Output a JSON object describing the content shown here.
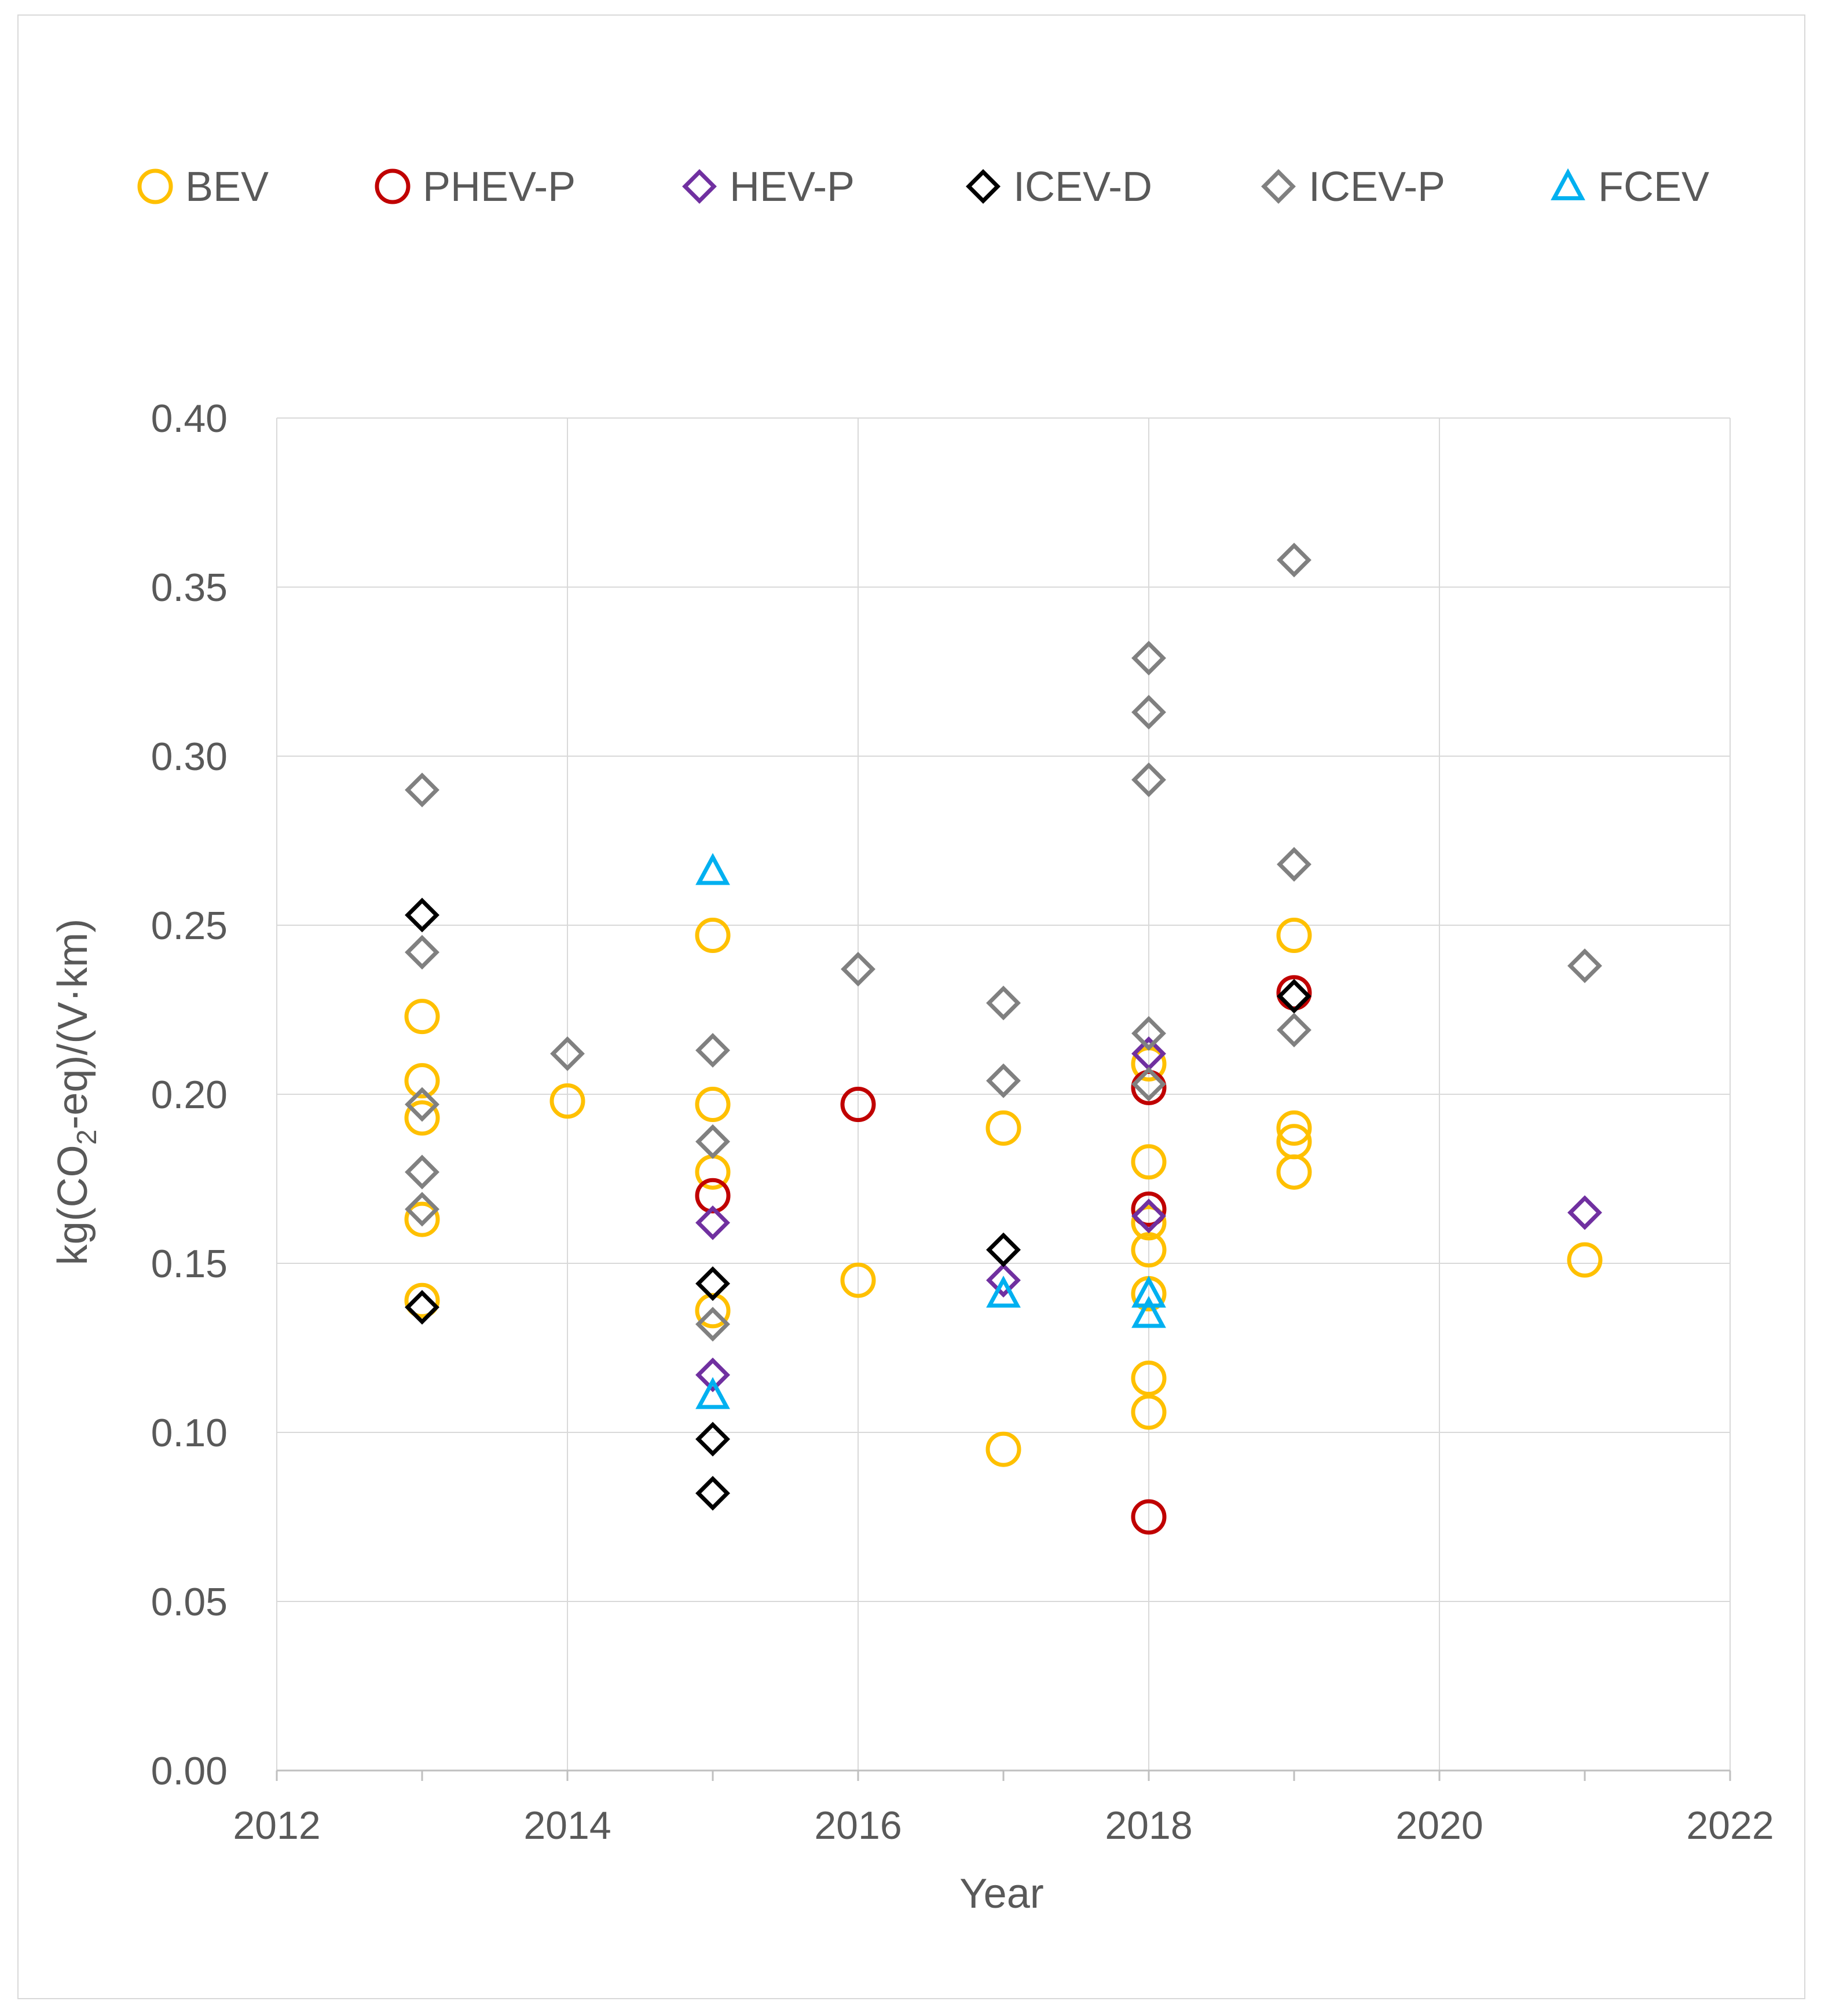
{
  "chart_data": {
    "type": "scatter",
    "title": "",
    "xlabel": "Year",
    "ylabel": "kg(CO2-eq)/(V·km)",
    "ylabel_parts": {
      "pre": "kg(CO",
      "sub": "2",
      "post": "-eq)/(V·km)"
    },
    "xlim": [
      2012,
      2022
    ],
    "ylim": [
      0,
      0.4
    ],
    "x_ticks": [
      2012,
      2014,
      2016,
      2018,
      2020,
      2022
    ],
    "y_ticks": [
      0.0,
      0.05,
      0.1,
      0.15,
      0.2,
      0.25,
      0.3,
      0.35,
      0.4
    ],
    "y_tick_labels": [
      "0.00",
      "0.05",
      "0.10",
      "0.15",
      "0.20",
      "0.25",
      "0.30",
      "0.35",
      "0.40"
    ],
    "grid": true,
    "legend_position": "top",
    "series": [
      {
        "name": "BEV",
        "marker": "circle",
        "color": "#FFC000",
        "points": [
          [
            2013,
            0.223
          ],
          [
            2013,
            0.204
          ],
          [
            2013,
            0.193
          ],
          [
            2013,
            0.163
          ],
          [
            2013,
            0.139
          ],
          [
            2014,
            0.198
          ],
          [
            2015,
            0.247
          ],
          [
            2015,
            0.197
          ],
          [
            2015,
            0.177
          ],
          [
            2015,
            0.136
          ],
          [
            2016,
            0.145
          ],
          [
            2017,
            0.19
          ],
          [
            2017,
            0.095
          ],
          [
            2018,
            0.209
          ],
          [
            2018,
            0.18
          ],
          [
            2018,
            0.162
          ],
          [
            2018,
            0.154
          ],
          [
            2018,
            0.141
          ],
          [
            2018,
            0.116
          ],
          [
            2018,
            0.106
          ],
          [
            2019,
            0.247
          ],
          [
            2019,
            0.19
          ],
          [
            2019,
            0.186
          ],
          [
            2019,
            0.177
          ],
          [
            2021,
            0.151
          ]
        ]
      },
      {
        "name": "PHEV-P",
        "marker": "circle",
        "color": "#C00000",
        "points": [
          [
            2015,
            0.17
          ],
          [
            2016,
            0.197
          ],
          [
            2018,
            0.202
          ],
          [
            2018,
            0.166
          ],
          [
            2018,
            0.075
          ],
          [
            2019,
            0.23
          ]
        ]
      },
      {
        "name": "HEV-P",
        "marker": "diamond",
        "color": "#7030A0",
        "points": [
          [
            2015,
            0.162
          ],
          [
            2015,
            0.117
          ],
          [
            2017,
            0.145
          ],
          [
            2018,
            0.212
          ],
          [
            2018,
            0.164
          ],
          [
            2021,
            0.165
          ]
        ]
      },
      {
        "name": "ICEV-D",
        "marker": "diamond",
        "color": "#000000",
        "points": [
          [
            2013,
            0.253
          ],
          [
            2013,
            0.137
          ],
          [
            2015,
            0.144
          ],
          [
            2015,
            0.098
          ],
          [
            2015,
            0.082
          ],
          [
            2017,
            0.154
          ],
          [
            2019,
            0.229
          ]
        ]
      },
      {
        "name": "ICEV-P",
        "marker": "diamond",
        "color": "#808080",
        "points": [
          [
            2013,
            0.29
          ],
          [
            2013,
            0.242
          ],
          [
            2013,
            0.197
          ],
          [
            2013,
            0.177
          ],
          [
            2013,
            0.166
          ],
          [
            2014,
            0.212
          ],
          [
            2015,
            0.213
          ],
          [
            2015,
            0.186
          ],
          [
            2015,
            0.132
          ],
          [
            2016,
            0.237
          ],
          [
            2017,
            0.227
          ],
          [
            2017,
            0.204
          ],
          [
            2018,
            0.329
          ],
          [
            2018,
            0.313
          ],
          [
            2018,
            0.293
          ],
          [
            2018,
            0.218
          ],
          [
            2018,
            0.203
          ],
          [
            2019,
            0.358
          ],
          [
            2019,
            0.268
          ],
          [
            2019,
            0.219
          ],
          [
            2021,
            0.238
          ]
        ]
      },
      {
        "name": "FCEV",
        "marker": "triangle",
        "color": "#00B0F0",
        "points": [
          [
            2015,
            0.266
          ],
          [
            2015,
            0.111
          ],
          [
            2017,
            0.141
          ],
          [
            2018,
            0.141
          ],
          [
            2018,
            0.135
          ]
        ]
      }
    ]
  }
}
